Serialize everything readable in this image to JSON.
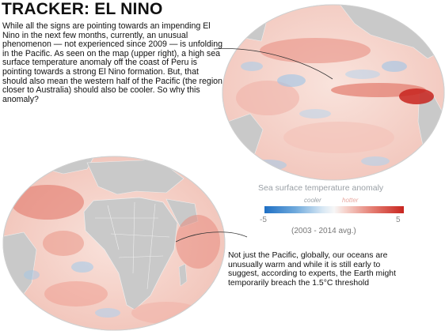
{
  "header": {
    "title": "TRACKER: EL NINO"
  },
  "intro": {
    "text": "While all the signs are pointing towards an impending El Nino in the next few months, currently, an unusual phenomenon — not experienced since 2009 — is unfolding in the Pacific. As seen on the map (upper right), a high sea surface temperature anomaly off the coast of Peru is pointing towards a strong El Nino formation. But, that should also mean the western half of the Pacific (the region closer to Australia) should also be cooler. So why this anomaly?"
  },
  "outro": {
    "text": "Not just the Pacific, globally, our oceans are unusually warm and while it is still early to suggest, according to experts, the Earth might temporarily breach the 1.5°C threshold"
  },
  "legend": {
    "title": "Sea surface temperature anomaly",
    "cooler_label": "cooler",
    "hotter_label": "hotter",
    "min_label": "-5",
    "max_label": "5",
    "period": "(2003 - 2014 avg.)"
  },
  "colors": {
    "warm": "#e06a5c",
    "hot": "#c8251f",
    "cool": "#6ea9dc",
    "land": "#c9c9c9",
    "ocean_base": "#f7ddd6"
  },
  "maps": [
    {
      "name": "pacific-globe",
      "view": "Pacific Ocean"
    },
    {
      "name": "atlantic-africa-globe",
      "view": "Atlantic and Indian Oceans"
    }
  ]
}
